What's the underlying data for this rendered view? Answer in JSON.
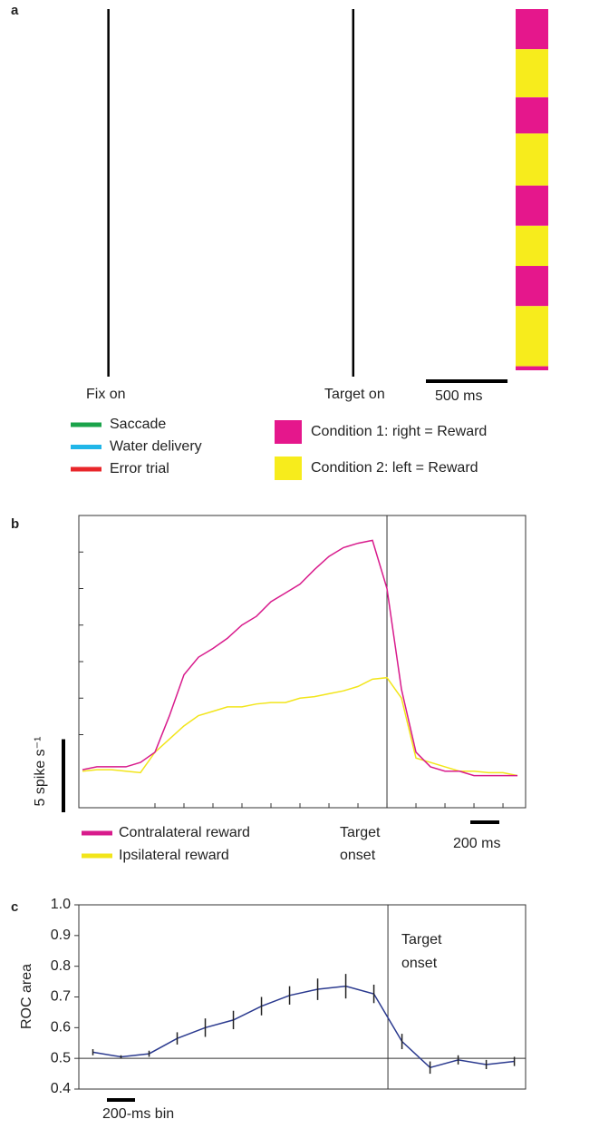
{
  "chart_data": [
    {
      "type": "raster",
      "panel_label": "a",
      "xlim": [
        -1970,
        1195
      ],
      "events": [
        {
          "x": -1500,
          "label": "Fix on"
        },
        {
          "x": 0,
          "label": "Target on"
        }
      ],
      "scalebar": {
        "length": 500,
        "label": "500 ms"
      },
      "legend_lines": [
        {
          "name": "Saccade",
          "color": "#1aa34a"
        },
        {
          "name": "Water delivery",
          "color": "#21b6e8"
        },
        {
          "name": "Error trial",
          "color": "#e8262a"
        }
      ],
      "conditions": [
        {
          "name": "Condition 1: right = Reward",
          "color": "#e5178c"
        },
        {
          "name": "Condition 2: left = Reward",
          "color": "#f7ec1c"
        }
      ],
      "blocks": [
        {
          "condition": 1,
          "trials": 10
        },
        {
          "condition": 2,
          "trials": 12
        },
        {
          "condition": 1,
          "trials": 9
        },
        {
          "condition": 2,
          "trials": 13
        },
        {
          "condition": 1,
          "trials": 10
        },
        {
          "condition": 2,
          "trials": 10
        },
        {
          "condition": 1,
          "trials": 10
        },
        {
          "condition": 2,
          "trials": 15
        },
        {
          "condition": 1,
          "trials": 1
        }
      ]
    },
    {
      "type": "line",
      "panel_label": "b",
      "x": [
        -2100,
        -2000,
        -1900,
        -1800,
        -1700,
        -1600,
        -1500,
        -1400,
        -1300,
        -1200,
        -1100,
        -1000,
        -900,
        -800,
        -700,
        -600,
        -500,
        -400,
        -300,
        -200,
        -100,
        0,
        100,
        200,
        300,
        400,
        500,
        600,
        700,
        800,
        900
      ],
      "series": [
        {
          "name": "Contralateral reward",
          "color": "#d81b8c",
          "values": [
            2.6,
            2.8,
            2.8,
            2.8,
            3.1,
            3.8,
            6.3,
            9.1,
            10.3,
            10.9,
            11.6,
            12.5,
            13.1,
            14.1,
            14.7,
            15.3,
            16.3,
            17.2,
            17.8,
            18.1,
            18.3,
            15,
            8.1,
            3.8,
            2.8,
            2.5,
            2.5,
            2.2,
            2.2,
            2.2,
            2.2
          ]
        },
        {
          "name": "Ipsilateral reward",
          "color": "#f2e51a",
          "values": [
            2.5,
            2.6,
            2.6,
            2.5,
            2.4,
            3.8,
            4.7,
            5.6,
            6.3,
            6.6,
            6.9,
            6.9,
            7.1,
            7.2,
            7.2,
            7.5,
            7.6,
            7.8,
            8.0,
            8.3,
            8.8,
            8.9,
            7.5,
            3.4,
            3.1,
            2.8,
            2.5,
            2.5,
            2.4,
            2.4,
            2.2
          ]
        }
      ],
      "xlim": [
        -2125,
        956
      ],
      "ylim": [
        0,
        20
      ],
      "xticks": [
        -1600,
        -1400,
        -1200,
        -1000,
        -800,
        -600,
        -400,
        -200,
        0,
        200,
        400,
        600,
        800
      ],
      "yticks": [
        5,
        7.5,
        10,
        12.5,
        15,
        17.5
      ],
      "event": {
        "x": 0,
        "label": [
          "Target",
          "onset"
        ]
      },
      "x_scalebar": {
        "length": 200,
        "label": "200 ms"
      },
      "y_scalebar": {
        "length": 5,
        "label": "5 spike s⁻¹"
      }
    },
    {
      "type": "errorline",
      "panel_label": "c",
      "y_label": "ROC area",
      "color": "#2b3a8f",
      "x": [
        -2100,
        -1900,
        -1700,
        -1500,
        -1300,
        -1100,
        -900,
        -700,
        -500,
        -300,
        -100,
        100,
        300,
        500,
        700,
        900
      ],
      "values": [
        0.52,
        0.505,
        0.515,
        0.565,
        0.6,
        0.625,
        0.67,
        0.705,
        0.725,
        0.735,
        0.71,
        0.555,
        0.47,
        0.495,
        0.48,
        0.49
      ],
      "errors": [
        0.01,
        0.005,
        0.01,
        0.02,
        0.03,
        0.03,
        0.03,
        0.03,
        0.035,
        0.04,
        0.03,
        0.025,
        0.02,
        0.015,
        0.015,
        0.015
      ],
      "xlim": [
        -2200,
        980
      ],
      "ylim": [
        0.4,
        1.0
      ],
      "yticks": [
        0.4,
        0.5,
        0.6,
        0.7,
        0.8,
        0.9,
        {
          "value": 1,
          "label": "1.0"
        }
      ],
      "reference_line": 0.5,
      "event": {
        "x": 0,
        "label": [
          "Target",
          "onset"
        ]
      },
      "x_scalebar": {
        "length": 200,
        "label": "200-ms bin"
      }
    }
  ]
}
